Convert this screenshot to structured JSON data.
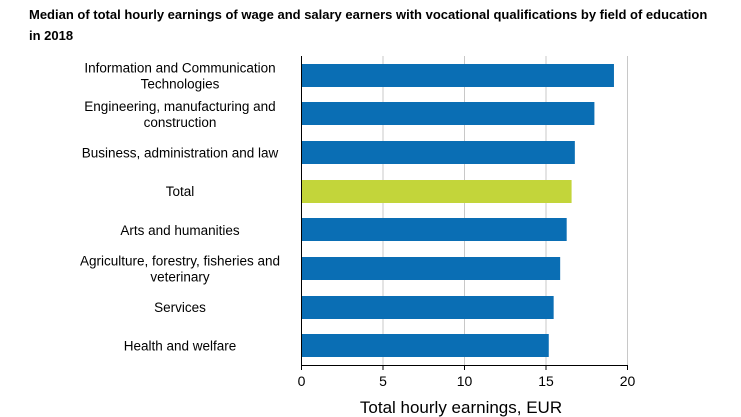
{
  "chart_data": {
    "type": "bar",
    "orientation": "horizontal",
    "title": "Median of total hourly earnings of wage and salary earners with vocational qualifications by field of education in 2018",
    "categories": [
      "Information and Communication Technologies",
      "Engineering, manufacturing and construction",
      "Business, administration and law",
      "Total",
      "Arts and humanities",
      "Agriculture, forestry, fisheries and veterinary",
      "Services",
      "Health and welfare"
    ],
    "category_label_lines": [
      [
        "Information and Communication",
        "Technologies"
      ],
      [
        "Engineering, manufacturing and",
        "construction"
      ],
      [
        "Business, administration and law"
      ],
      [
        "Total"
      ],
      [
        "Arts and humanities"
      ],
      [
        "Agriculture, forestry, fisheries and",
        "veterinary"
      ],
      [
        "Services"
      ],
      [
        "Health and welfare"
      ]
    ],
    "values": [
      19.2,
      18.0,
      16.8,
      16.6,
      16.3,
      15.9,
      15.5,
      15.2
    ],
    "xlabel": "Total hourly earnings, EUR",
    "ylabel": "",
    "xlim": [
      0,
      20
    ],
    "xticks": [
      0,
      5,
      10,
      15,
      20
    ],
    "grid": "vertical",
    "legend": "none",
    "colors": {
      "default_bar": "#0a6eb4",
      "highlight_bar": "#c3d53a",
      "highlight_category": "Total",
      "grid": "#c8c8c8",
      "axis": "#000000"
    }
  }
}
